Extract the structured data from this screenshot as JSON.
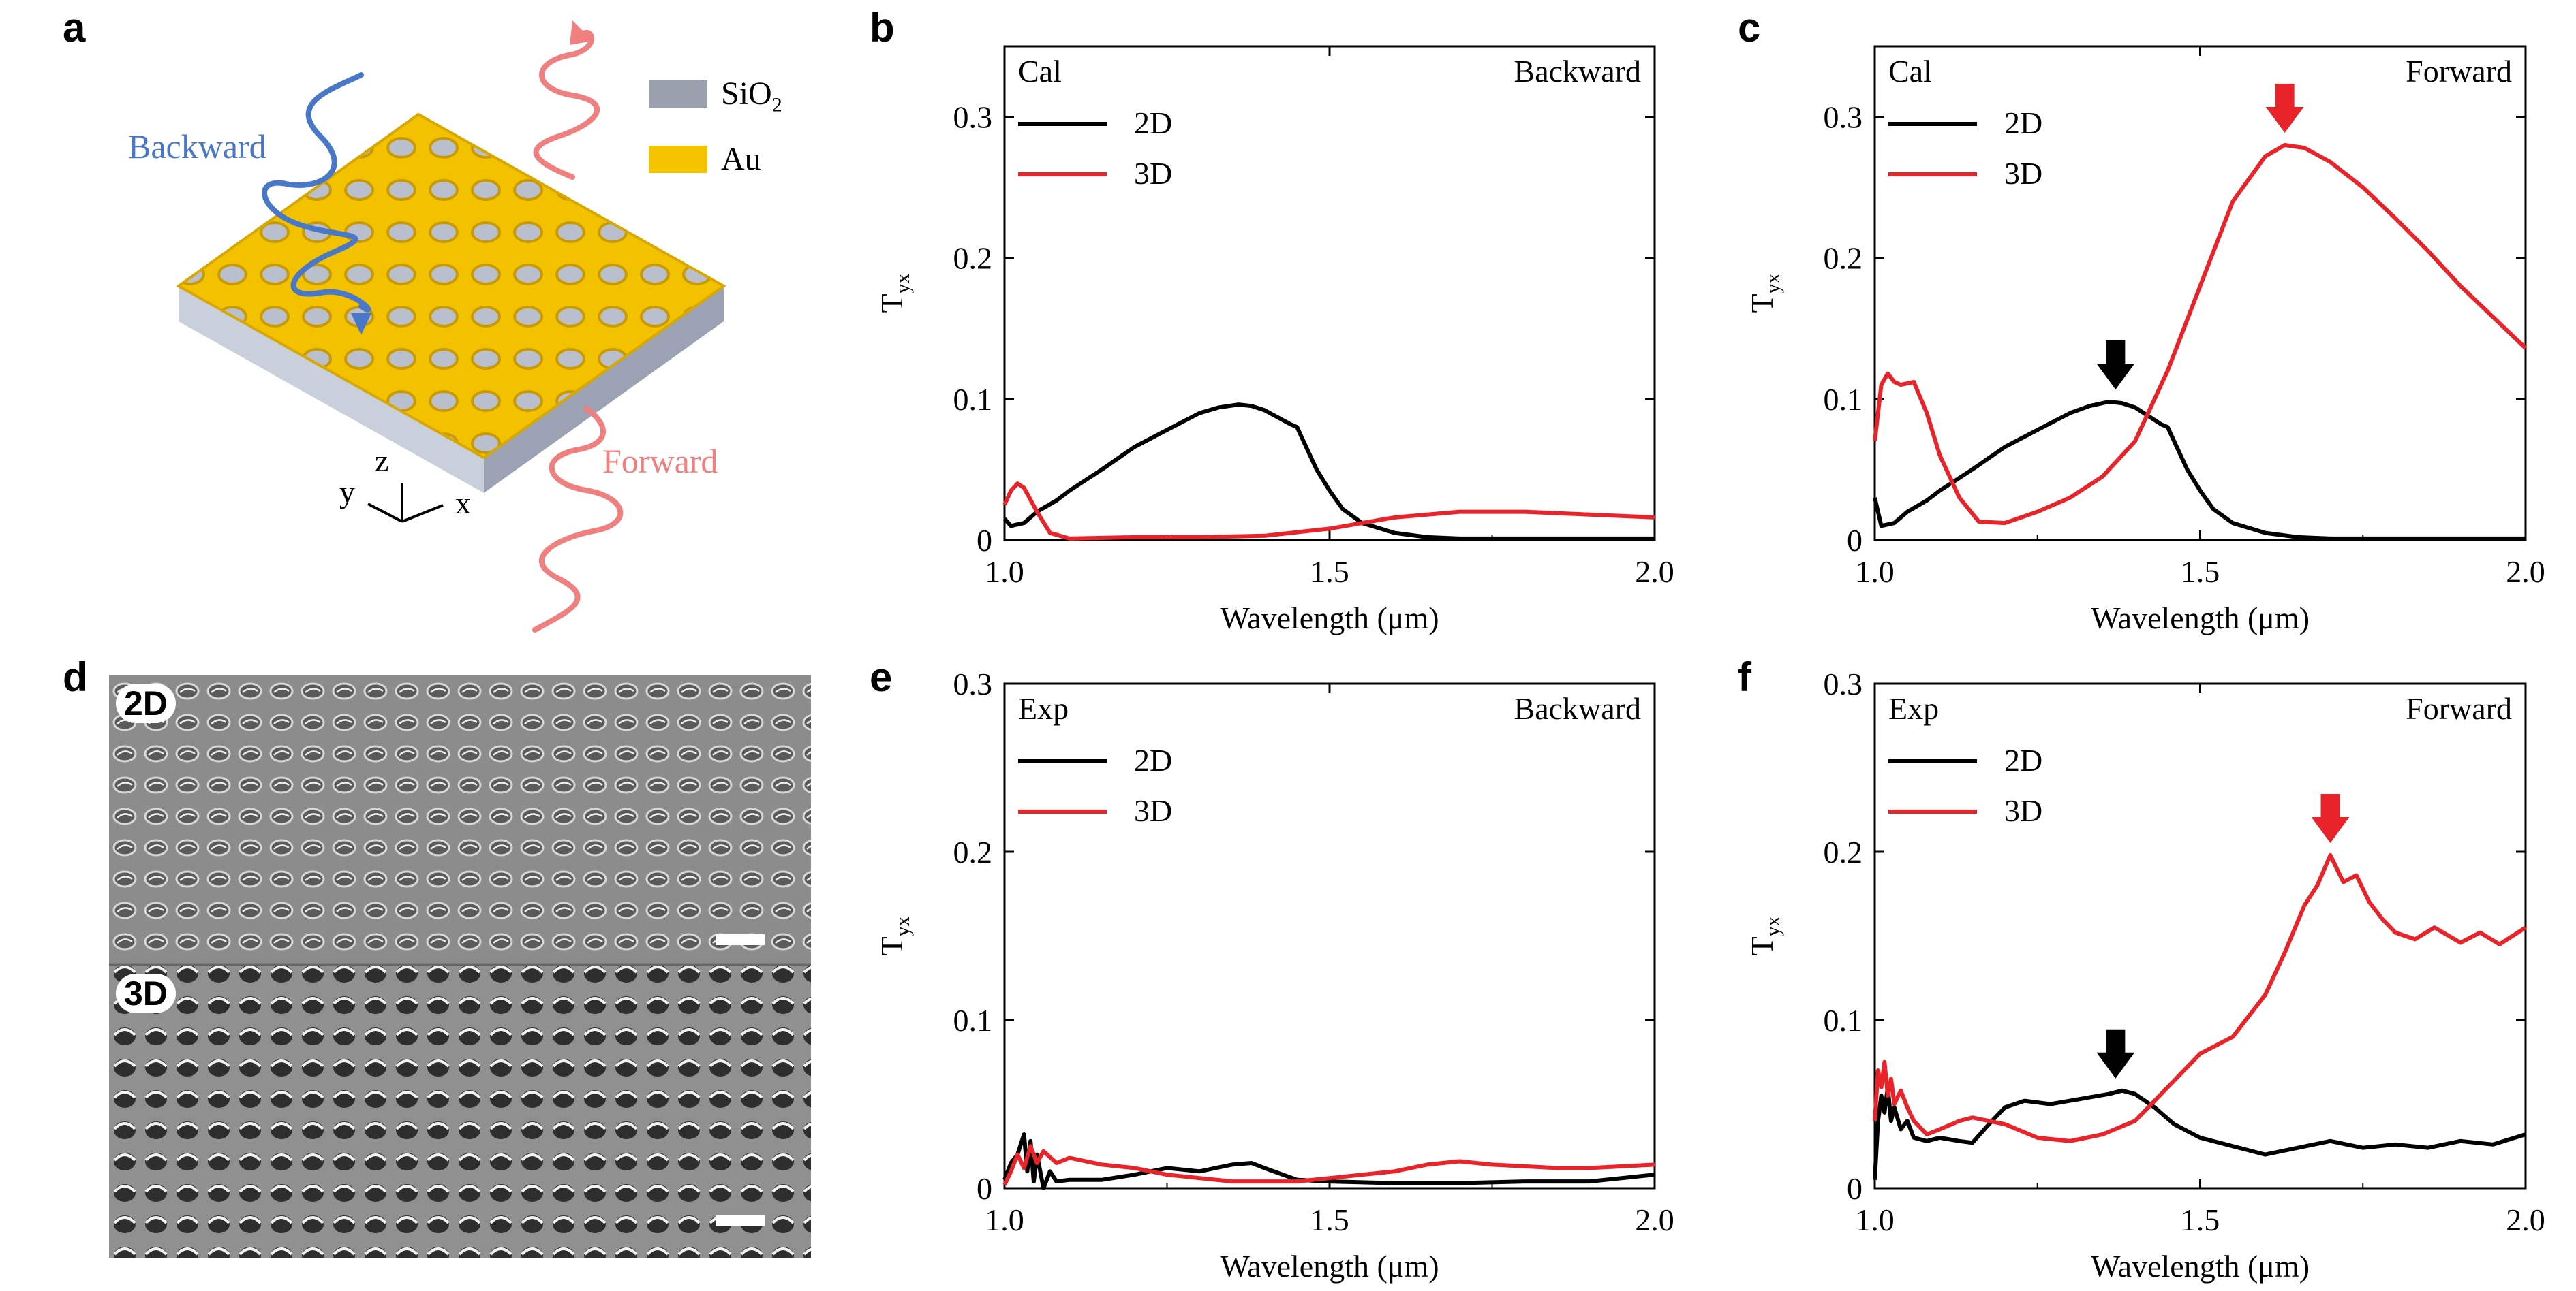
{
  "panels": {
    "a": "a",
    "b": "b",
    "c": "c",
    "d": "d",
    "e": "e",
    "f": "f"
  },
  "schematic": {
    "backward_label": "Backward",
    "forward_label": "Forward",
    "legend": [
      {
        "label": "SiO",
        "sub": "2",
        "color": "#9aa0ae"
      },
      {
        "label": "Au",
        "sub": "",
        "color": "#f5c400"
      }
    ],
    "axes": {
      "z": "z",
      "y": "y",
      "x": "x"
    },
    "colors": {
      "backward": "#4a78c8",
      "forward": "#f08080",
      "gold": "#f2c200",
      "substrate": "#b6bccb"
    }
  },
  "sem": {
    "top_label": "2D",
    "bottom_label": "3D"
  },
  "chart_data": [
    {
      "id": "b",
      "type": "line",
      "title_left": "Cal",
      "title_right": "Backward",
      "xlabel": "Wavelength (μm)",
      "ylabel": "T",
      "ylabel_sub": "yx",
      "xlim": [
        1.0,
        2.0
      ],
      "ylim": [
        0,
        0.35
      ],
      "xticks": [
        1.0,
        1.5,
        2.0
      ],
      "xtick_labels": [
        "1.0",
        "1.5",
        "2.0"
      ],
      "yticks": [
        0,
        0.1,
        0.2,
        0.3
      ],
      "ytick_labels": [
        "0",
        "0.1",
        "0.2",
        "0.3"
      ],
      "legend_position": "top-left",
      "series": [
        {
          "name": "2D",
          "color": "#000000",
          "x": [
            1.0,
            1.01,
            1.03,
            1.05,
            1.08,
            1.1,
            1.15,
            1.2,
            1.25,
            1.3,
            1.33,
            1.36,
            1.38,
            1.4,
            1.42,
            1.44,
            1.45,
            1.46,
            1.48,
            1.5,
            1.52,
            1.55,
            1.6,
            1.65,
            1.7,
            1.8,
            1.9,
            2.0
          ],
          "y": [
            0.015,
            0.01,
            0.012,
            0.02,
            0.028,
            0.035,
            0.05,
            0.066,
            0.078,
            0.09,
            0.094,
            0.096,
            0.095,
            0.092,
            0.087,
            0.082,
            0.08,
            0.07,
            0.05,
            0.035,
            0.022,
            0.012,
            0.005,
            0.002,
            0.001,
            0.001,
            0.001,
            0.001
          ]
        },
        {
          "name": "3D",
          "color": "#e8242a",
          "x": [
            1.0,
            1.01,
            1.02,
            1.03,
            1.05,
            1.07,
            1.1,
            1.2,
            1.3,
            1.4,
            1.5,
            1.55,
            1.6,
            1.7,
            1.75,
            1.8,
            1.9,
            2.0
          ],
          "y": [
            0.025,
            0.035,
            0.04,
            0.037,
            0.02,
            0.005,
            0.001,
            0.002,
            0.002,
            0.003,
            0.008,
            0.012,
            0.016,
            0.02,
            0.02,
            0.02,
            0.018,
            0.016
          ]
        }
      ],
      "arrows": []
    },
    {
      "id": "c",
      "type": "line",
      "title_left": "Cal",
      "title_right": "Forward",
      "xlabel": "Wavelength (μm)",
      "ylabel": "T",
      "ylabel_sub": "yx",
      "xlim": [
        1.0,
        2.0
      ],
      "ylim": [
        0,
        0.35
      ],
      "xticks": [
        1.0,
        1.5,
        2.0
      ],
      "xtick_labels": [
        "1.0",
        "1.5",
        "2.0"
      ],
      "yticks": [
        0,
        0.1,
        0.2,
        0.3
      ],
      "ytick_labels": [
        "0",
        "0.1",
        "0.2",
        "0.3"
      ],
      "legend_position": "top-left",
      "series": [
        {
          "name": "2D",
          "color": "#000000",
          "x": [
            1.0,
            1.01,
            1.03,
            1.05,
            1.08,
            1.1,
            1.15,
            1.2,
            1.25,
            1.3,
            1.33,
            1.36,
            1.38,
            1.4,
            1.42,
            1.44,
            1.45,
            1.46,
            1.48,
            1.5,
            1.52,
            1.55,
            1.6,
            1.65,
            1.7,
            1.8,
            1.9,
            2.0
          ],
          "y": [
            0.03,
            0.01,
            0.012,
            0.02,
            0.028,
            0.035,
            0.05,
            0.066,
            0.078,
            0.09,
            0.095,
            0.098,
            0.097,
            0.094,
            0.088,
            0.082,
            0.08,
            0.07,
            0.05,
            0.035,
            0.022,
            0.012,
            0.005,
            0.002,
            0.001,
            0.001,
            0.001,
            0.001
          ]
        },
        {
          "name": "3D",
          "color": "#e8242a",
          "x": [
            1.0,
            1.01,
            1.02,
            1.03,
            1.04,
            1.06,
            1.08,
            1.1,
            1.13,
            1.16,
            1.2,
            1.25,
            1.3,
            1.35,
            1.4,
            1.45,
            1.5,
            1.55,
            1.6,
            1.63,
            1.66,
            1.7,
            1.75,
            1.8,
            1.85,
            1.9,
            1.95,
            2.0
          ],
          "y": [
            0.07,
            0.11,
            0.118,
            0.112,
            0.11,
            0.112,
            0.09,
            0.06,
            0.03,
            0.013,
            0.012,
            0.02,
            0.03,
            0.045,
            0.07,
            0.12,
            0.18,
            0.24,
            0.272,
            0.28,
            0.278,
            0.268,
            0.25,
            0.228,
            0.205,
            0.18,
            0.158,
            0.136
          ]
        }
      ],
      "arrows": [
        {
          "x": 1.37,
          "y": 0.098,
          "color": "#000000"
        },
        {
          "x": 1.63,
          "y": 0.28,
          "color": "#e8242a"
        }
      ]
    },
    {
      "id": "e",
      "type": "line",
      "title_left": "Exp",
      "title_right": "Backward",
      "xlabel": "Wavelength (μm)",
      "ylabel": "T",
      "ylabel_sub": "yx",
      "xlim": [
        1.0,
        2.0
      ],
      "ylim": [
        0,
        0.3
      ],
      "xticks": [
        1.0,
        1.5,
        2.0
      ],
      "xtick_labels": [
        "1.0",
        "1.5",
        "2.0"
      ],
      "yticks": [
        0,
        0.1,
        0.2,
        0.3
      ],
      "ytick_labels": [
        "0",
        "0.1",
        "0.2",
        "0.3"
      ],
      "legend_position": "top-left",
      "series": [
        {
          "name": "2D",
          "color": "#000000",
          "x": [
            1.0,
            1.01,
            1.02,
            1.03,
            1.035,
            1.04,
            1.045,
            1.05,
            1.06,
            1.07,
            1.08,
            1.1,
            1.15,
            1.2,
            1.25,
            1.3,
            1.35,
            1.38,
            1.4,
            1.45,
            1.5,
            1.6,
            1.7,
            1.8,
            1.9,
            2.0
          ],
          "y": [
            0.005,
            0.015,
            0.02,
            0.032,
            0.01,
            0.028,
            0.004,
            0.02,
            0.0,
            0.01,
            0.004,
            0.005,
            0.005,
            0.008,
            0.012,
            0.01,
            0.014,
            0.015,
            0.012,
            0.005,
            0.004,
            0.003,
            0.003,
            0.004,
            0.004,
            0.008
          ]
        },
        {
          "name": "3D",
          "color": "#e8242a",
          "x": [
            1.0,
            1.01,
            1.02,
            1.03,
            1.04,
            1.05,
            1.06,
            1.08,
            1.1,
            1.15,
            1.2,
            1.25,
            1.3,
            1.35,
            1.4,
            1.45,
            1.5,
            1.55,
            1.6,
            1.65,
            1.7,
            1.75,
            1.8,
            1.85,
            1.9,
            1.95,
            2.0
          ],
          "y": [
            0.002,
            0.01,
            0.02,
            0.012,
            0.025,
            0.015,
            0.022,
            0.015,
            0.018,
            0.014,
            0.012,
            0.008,
            0.006,
            0.004,
            0.004,
            0.004,
            0.006,
            0.008,
            0.01,
            0.014,
            0.016,
            0.014,
            0.013,
            0.012,
            0.012,
            0.013,
            0.014
          ]
        }
      ],
      "arrows": []
    },
    {
      "id": "f",
      "type": "line",
      "title_left": "Exp",
      "title_right": "Forward",
      "xlabel": "Wavelength (μm)",
      "ylabel": "T",
      "ylabel_sub": "yx",
      "xlim": [
        1.0,
        2.0
      ],
      "ylim": [
        0,
        0.3
      ],
      "xticks": [
        1.0,
        1.5,
        2.0
      ],
      "xtick_labels": [
        "1.0",
        "1.5",
        "2.0"
      ],
      "yticks": [
        0,
        0.1,
        0.2,
        0.3
      ],
      "ytick_labels": [
        "0",
        "0.1",
        "0.2",
        "0.3"
      ],
      "legend_position": "top-left",
      "series": [
        {
          "name": "2D",
          "color": "#000000",
          "x": [
            1.0,
            1.005,
            1.01,
            1.015,
            1.02,
            1.025,
            1.03,
            1.04,
            1.05,
            1.06,
            1.08,
            1.1,
            1.13,
            1.15,
            1.18,
            1.2,
            1.23,
            1.27,
            1.3,
            1.33,
            1.36,
            1.38,
            1.4,
            1.43,
            1.46,
            1.5,
            1.55,
            1.6,
            1.65,
            1.7,
            1.75,
            1.8,
            1.85,
            1.9,
            1.95,
            2.0
          ],
          "y": [
            0.005,
            0.04,
            0.055,
            0.045,
            0.06,
            0.04,
            0.048,
            0.035,
            0.04,
            0.03,
            0.028,
            0.03,
            0.028,
            0.027,
            0.04,
            0.048,
            0.052,
            0.05,
            0.052,
            0.054,
            0.056,
            0.058,
            0.056,
            0.048,
            0.038,
            0.03,
            0.025,
            0.02,
            0.024,
            0.028,
            0.024,
            0.026,
            0.024,
            0.028,
            0.026,
            0.032
          ]
        },
        {
          "name": "3D",
          "color": "#e8242a",
          "x": [
            1.0,
            1.005,
            1.01,
            1.015,
            1.02,
            1.025,
            1.03,
            1.04,
            1.05,
            1.06,
            1.08,
            1.1,
            1.13,
            1.15,
            1.2,
            1.25,
            1.3,
            1.35,
            1.4,
            1.45,
            1.5,
            1.55,
            1.6,
            1.63,
            1.66,
            1.68,
            1.7,
            1.72,
            1.74,
            1.76,
            1.78,
            1.8,
            1.83,
            1.86,
            1.9,
            1.93,
            1.96,
            2.0
          ],
          "y": [
            0.04,
            0.07,
            0.06,
            0.075,
            0.055,
            0.065,
            0.05,
            0.058,
            0.048,
            0.04,
            0.032,
            0.035,
            0.04,
            0.042,
            0.038,
            0.03,
            0.028,
            0.032,
            0.04,
            0.06,
            0.08,
            0.09,
            0.115,
            0.14,
            0.168,
            0.18,
            0.198,
            0.182,
            0.186,
            0.17,
            0.16,
            0.152,
            0.148,
            0.155,
            0.146,
            0.152,
            0.145,
            0.155
          ]
        }
      ],
      "arrows": [
        {
          "x": 1.37,
          "y": 0.058,
          "color": "#000000"
        },
        {
          "x": 1.7,
          "y": 0.198,
          "color": "#e8242a"
        }
      ]
    }
  ]
}
